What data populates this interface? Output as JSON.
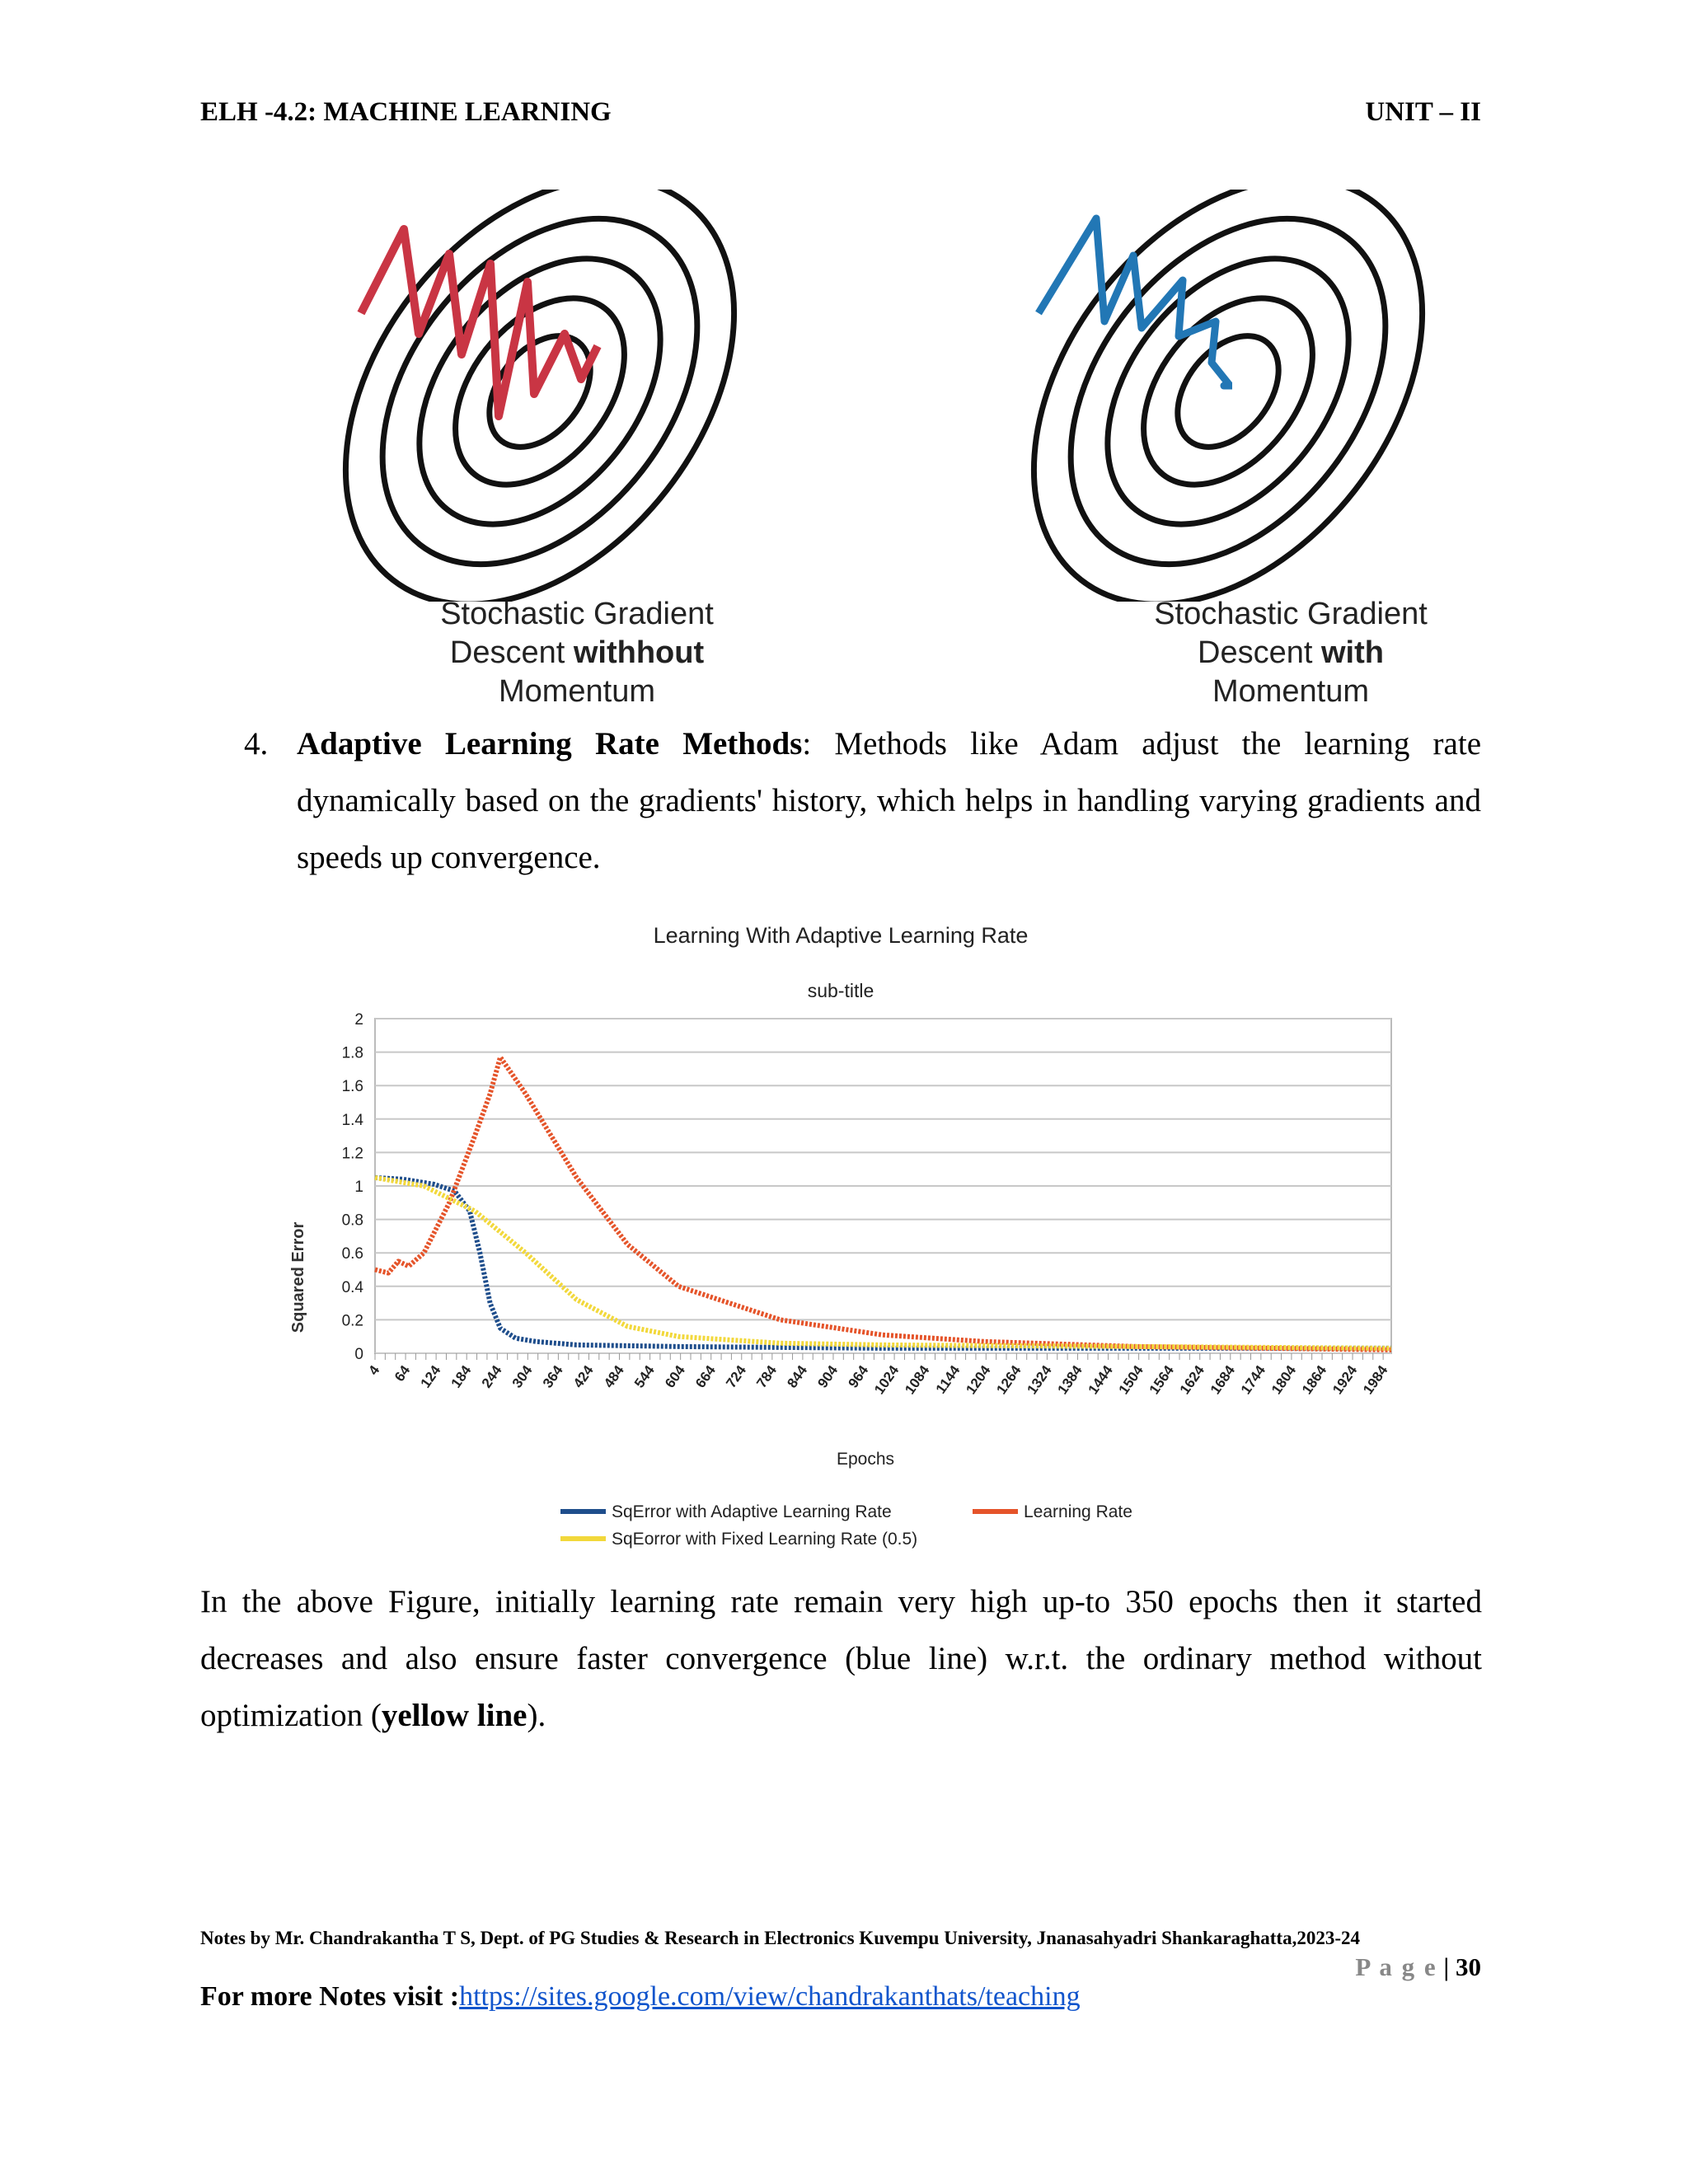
{
  "header": {
    "left": "ELH -4.2: MACHINE LEARNING",
    "right": "UNIT – II"
  },
  "figure1": {
    "left_caption": {
      "line1": "Stochastic Gradient",
      "line2_pre": "Descent ",
      "line2_bold": "withhout",
      "line3": "Momentum"
    },
    "right_caption": {
      "line1": "Stochastic Gradient",
      "line2_pre": "Descent ",
      "line2_bold": "with",
      "line3": "Momentum"
    },
    "colors": {
      "without": "#c93544",
      "with": "#2277b5"
    }
  },
  "item4": {
    "number": "4.",
    "title": "Adaptive Learning Rate Methods",
    "text": ": Methods like Adam adjust the learning rate dynamically based on the gradients' history, which helps in handling varying gradients and speeds up convergence."
  },
  "chart_data": {
    "type": "line",
    "title": "Learning With Adaptive Learning Rate",
    "subtitle": "sub-title",
    "xlabel": "Epochs",
    "ylabel": "Squared Error",
    "ylim": [
      0,
      2
    ],
    "xlim": [
      4,
      2000
    ],
    "yticks": [
      "0",
      "0.2",
      "0.4",
      "0.6",
      "0.8",
      "1",
      "1.2",
      "1.4",
      "1.6",
      "1.8",
      "2"
    ],
    "xticks": [
      "4",
      "64",
      "124",
      "184",
      "244",
      "304",
      "364",
      "424",
      "484",
      "544",
      "604",
      "664",
      "724",
      "784",
      "844",
      "904",
      "964",
      "1024",
      "1084",
      "1144",
      "1204",
      "1264",
      "1324",
      "1384",
      "1444",
      "1504",
      "1564",
      "1624",
      "1684",
      "1744",
      "1804",
      "1864",
      "1924",
      "1984"
    ],
    "grid": true,
    "legend": "bottom",
    "series": [
      {
        "name": "SqError with Adaptive Learning Rate",
        "color": "#1f4e8c",
        "x": [
          4,
          60,
          120,
          160,
          190,
          210,
          230,
          250,
          280,
          320,
          400,
          600,
          1000,
          1500,
          2000
        ],
        "y": [
          1.05,
          1.04,
          1.01,
          0.97,
          0.85,
          0.6,
          0.3,
          0.15,
          0.09,
          0.07,
          0.05,
          0.04,
          0.03,
          0.03,
          0.03
        ]
      },
      {
        "name": "Learning Rate",
        "color": "#e5542a",
        "x": [
          4,
          30,
          50,
          70,
          100,
          150,
          200,
          230,
          250,
          300,
          400,
          500,
          600,
          800,
          1000,
          1200,
          1500,
          2000
        ],
        "y": [
          0.5,
          0.48,
          0.55,
          0.52,
          0.6,
          0.9,
          1.3,
          1.55,
          1.77,
          1.55,
          1.05,
          0.65,
          0.4,
          0.2,
          0.11,
          0.07,
          0.04,
          0.02
        ]
      },
      {
        "name": "SqEorror with Fixed Learning Rate (0.5)",
        "color": "#f2d83b",
        "x": [
          4,
          100,
          200,
          300,
          400,
          500,
          600,
          700,
          800,
          1000,
          1500,
          2000
        ],
        "y": [
          1.05,
          1.0,
          0.85,
          0.6,
          0.32,
          0.16,
          0.1,
          0.08,
          0.06,
          0.05,
          0.04,
          0.03
        ]
      }
    ]
  },
  "paragraph": {
    "text": "In the above Figure, initially learning rate remain very high up-to 350 epochs then it started decreases and also ensure faster convergence (blue line) w.r.t. the ordinary method without optimization (",
    "bold": "yellow line",
    "end": ")."
  },
  "footer": {
    "notes": "Notes by Mr. Chandrakantha T S, Dept. of PG Studies & Research in Electronics Kuvempu University, Jnanasahyadri Shankaraghatta,2023-24",
    "page_label": "P a g e",
    "page_number": "| 30",
    "visit_label": "For more Notes visit :",
    "link": "https://sites.google.com/view/chandrakanthats/teaching"
  }
}
